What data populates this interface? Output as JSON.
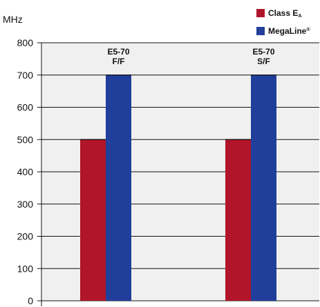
{
  "colors": {
    "class_ea": "#b0152a",
    "megaline": "#203e9a",
    "plot_bg": "#f0f0f0"
  },
  "legend": {
    "class_ea": {
      "main": "Class E",
      "sub": "A"
    },
    "megaline": {
      "main": "MegaLine",
      "sup": "®"
    }
  },
  "chart_data": {
    "type": "bar",
    "ylabel": "MHz",
    "ylim": [
      0,
      800
    ],
    "yticks": [
      "0",
      "100",
      "200",
      "300",
      "400",
      "500",
      "600",
      "700",
      "800"
    ],
    "grid": true,
    "legend_position": "top-right",
    "categories": [
      {
        "line1": "E5-70",
        "line2": "F/F"
      },
      {
        "line1": "E5-70",
        "line2": "S/F"
      }
    ],
    "series": [
      {
        "name": "Class EA",
        "values": [
          500,
          500
        ]
      },
      {
        "name": "MegaLine®",
        "values": [
          700,
          700
        ]
      }
    ]
  }
}
